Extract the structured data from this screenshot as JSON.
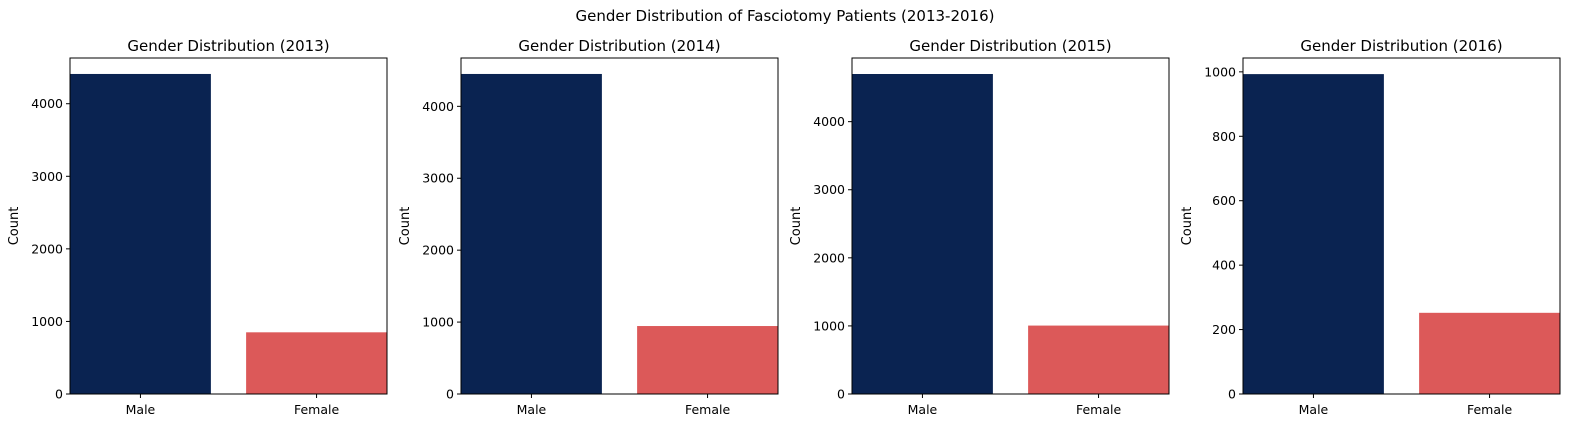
{
  "suptitle": "Gender Distribution of Fasciotomy Patients (2013-2016)",
  "colors": {
    "Male": "#0a2351",
    "Female": "#dc5959"
  },
  "chart_data": [
    {
      "type": "bar",
      "title": "Gender Distribution (2013)",
      "categories": [
        "Male",
        "Female"
      ],
      "values": [
        4410,
        850
      ],
      "xlabel": "",
      "ylabel": "Count",
      "ylim": [
        0,
        4630
      ],
      "yticks": [
        0,
        1000,
        2000,
        3000,
        4000
      ],
      "grid": false
    },
    {
      "type": "bar",
      "title": "Gender Distribution (2014)",
      "categories": [
        "Male",
        "Female"
      ],
      "values": [
        4450,
        945
      ],
      "xlabel": "",
      "ylabel": "Count",
      "ylim": [
        0,
        4672
      ],
      "yticks": [
        0,
        1000,
        2000,
        3000,
        4000
      ],
      "grid": false
    },
    {
      "type": "bar",
      "title": "Gender Distribution (2015)",
      "categories": [
        "Male",
        "Female"
      ],
      "values": [
        4700,
        1005
      ],
      "xlabel": "",
      "ylabel": "Count",
      "ylim": [
        0,
        4935
      ],
      "yticks": [
        0,
        1000,
        2000,
        3000,
        4000
      ],
      "grid": false
    },
    {
      "type": "bar",
      "title": "Gender Distribution (2016)",
      "categories": [
        "Male",
        "Female"
      ],
      "values": [
        993,
        252
      ],
      "xlabel": "",
      "ylabel": "Count",
      "ylim": [
        0,
        1043
      ],
      "yticks": [
        0,
        200,
        400,
        600,
        800,
        1000
      ],
      "grid": false
    }
  ]
}
